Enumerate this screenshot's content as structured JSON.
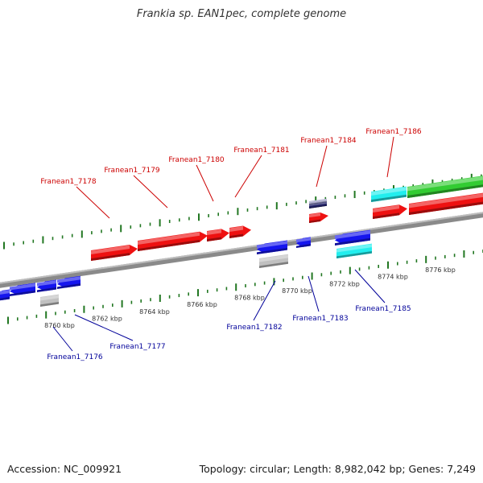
{
  "title": "Frankia sp. EAN1pec, complete genome",
  "accession": "Accession: NC_009921",
  "topology": "Topology: circular; Length: 8,982,042 bp; Genes: 7,249",
  "colors": {
    "background": "#ffffff",
    "backbone": "#888888",
    "forward_gene": "#ee1111",
    "reverse_gene": "#1515ee",
    "cyan_gene": "#22eeee",
    "green_gene": "#33cc33",
    "grey_gene": "#c0c0c0",
    "tick": "#227722",
    "forward_label": "#cc0000",
    "reverse_label": "#000099"
  },
  "scale_labels": [
    "8760 kbp",
    "8762 kbp",
    "8764 kbp",
    "8766 kbp",
    "8768 kbp",
    "8770 kbp",
    "8772 kbp",
    "8774 kbp",
    "8776 kbp"
  ],
  "forward_labels": [
    "Franean1_7178",
    "Franean1_7179",
    "Franean1_7180",
    "Franean1_7181",
    "Franean1_7184",
    "Franean1_7186"
  ],
  "reverse_labels": [
    "Franean1_7176",
    "Franean1_7177",
    "Franean1_7182",
    "Franean1_7183",
    "Franean1_7185"
  ]
}
